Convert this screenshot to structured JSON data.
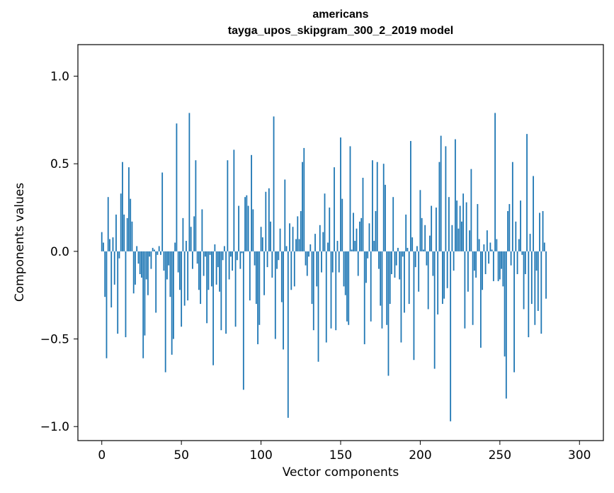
{
  "chart_data": {
    "type": "bar",
    "title": "americans",
    "subtitle": "tayga_upos_skipgram_300_2_2019 model",
    "xlabel": "Vector components",
    "ylabel": "Components values",
    "xlim": [
      -15,
      315
    ],
    "ylim": [
      -1.08,
      1.18
    ],
    "xticks": [
      0,
      50,
      100,
      150,
      200,
      250,
      300
    ],
    "xtick_labels": [
      "0",
      "50",
      "100",
      "150",
      "200",
      "250",
      "300"
    ],
    "yticks": [
      -1.0,
      -0.5,
      0.0,
      0.5,
      1.0
    ],
    "ytick_labels": [
      "−1.0",
      "−0.5",
      "0.0",
      "0.5",
      "1.0"
    ],
    "grid": false,
    "bar_color": "#1f77b4",
    "values": [
      0.11,
      0.05,
      -0.26,
      -0.61,
      0.31,
      0.07,
      -0.32,
      0.08,
      -0.19,
      0.21,
      -0.47,
      -0.04,
      0.33,
      0.51,
      0.21,
      -0.49,
      0.19,
      0.48,
      0.3,
      0.17,
      -0.24,
      -0.19,
      0.03,
      -0.07,
      -0.13,
      -0.15,
      -0.61,
      -0.48,
      -0.16,
      -0.25,
      -0.03,
      -0.1,
      0.02,
      0.01,
      -0.35,
      -0.02,
      0.03,
      -0.02,
      0.45,
      -0.11,
      -0.69,
      -0.16,
      -0.08,
      -0.26,
      -0.59,
      -0.5,
      0.05,
      0.73,
      -0.12,
      -0.22,
      -0.43,
      0.19,
      -0.31,
      0.06,
      -0.28,
      0.79,
      0.14,
      -0.1,
      0.2,
      0.52,
      -0.07,
      -0.22,
      -0.3,
      0.24,
      -0.14,
      -0.03,
      -0.41,
      -0.22,
      -0.02,
      -0.2,
      -0.65,
      0.04,
      -0.19,
      -0.09,
      -0.23,
      -0.45,
      -0.05,
      0.03,
      -0.47,
      0.52,
      -0.16,
      -0.03,
      -0.11,
      0.58,
      -0.43,
      -0.05,
      0.26,
      -0.1,
      -0.01,
      -0.79,
      0.31,
      0.32,
      0.26,
      -0.28,
      0.55,
      0.24,
      -0.08,
      -0.3,
      -0.53,
      -0.42,
      0.14,
      0.08,
      -0.25,
      0.34,
      -0.09,
      0.36,
      0.17,
      -0.15,
      0.77,
      -0.5,
      -0.1,
      -0.05,
      0.13,
      -0.29,
      -0.56,
      0.41,
      0.03,
      -0.95,
      0.16,
      -0.22,
      0.14,
      -0.2,
      0.07,
      0.2,
      0.07,
      0.23,
      0.51,
      0.59,
      -0.08,
      -0.14,
      -0.03,
      0.04,
      -0.3,
      -0.45,
      0.1,
      -0.2,
      -0.63,
      0.15,
      -0.12,
      0.11,
      0.33,
      -0.52,
      0.05,
      0.25,
      -0.44,
      -0.12,
      0.48,
      -0.45,
      0.06,
      -0.12,
      0.65,
      0.3,
      -0.2,
      -0.25,
      -0.4,
      -0.42,
      0.6,
      0.01,
      0.22,
      0.06,
      0.13,
      -0.14,
      0.17,
      0.19,
      0.42,
      -0.53,
      -0.18,
      -0.04,
      0.16,
      -0.4,
      0.52,
      0.06,
      0.23,
      0.51,
      -0.1,
      -0.31,
      -0.44,
      0.5,
      0.38,
      -0.42,
      -0.71,
      -0.3,
      -0.13,
      0.31,
      -0.15,
      -0.08,
      0.02,
      -0.16,
      -0.52,
      -0.03,
      -0.35,
      0.21,
      0.02,
      -0.3,
      0.63,
      0.08,
      -0.62,
      -0.09,
      0.03,
      -0.23,
      0.35,
      0.19,
      0.01,
      0.15,
      -0.08,
      -0.33,
      0.09,
      0.26,
      -0.14,
      -0.67,
      0.25,
      -0.36,
      0.51,
      0.66,
      -0.3,
      -0.27,
      0.6,
      -0.21,
      0.31,
      -0.97,
      0.15,
      -0.11,
      0.64,
      0.29,
      0.13,
      0.26,
      0.17,
      0.33,
      -0.44,
      0.28,
      -0.23,
      0.12,
      0.47,
      -0.42,
      -0.11,
      -0.15,
      0.27,
      0.07,
      -0.55,
      -0.22,
      0.04,
      -0.13,
      0.12,
      -0.07,
      0.05,
      0.01,
      -0.17,
      0.79,
      0.07,
      -0.17,
      -0.16,
      -0.1,
      -0.2,
      -0.6,
      -0.84,
      0.23,
      0.27,
      -0.08,
      0.51,
      -0.69,
      0.17,
      -0.13,
      0.07,
      0.29,
      -0.02,
      -0.33,
      -0.13,
      0.67,
      -0.49,
      0.1,
      -0.3,
      0.43,
      -0.42,
      -0.11,
      -0.34,
      0.22,
      -0.47,
      0.23,
      0.05,
      -0.27
    ]
  }
}
